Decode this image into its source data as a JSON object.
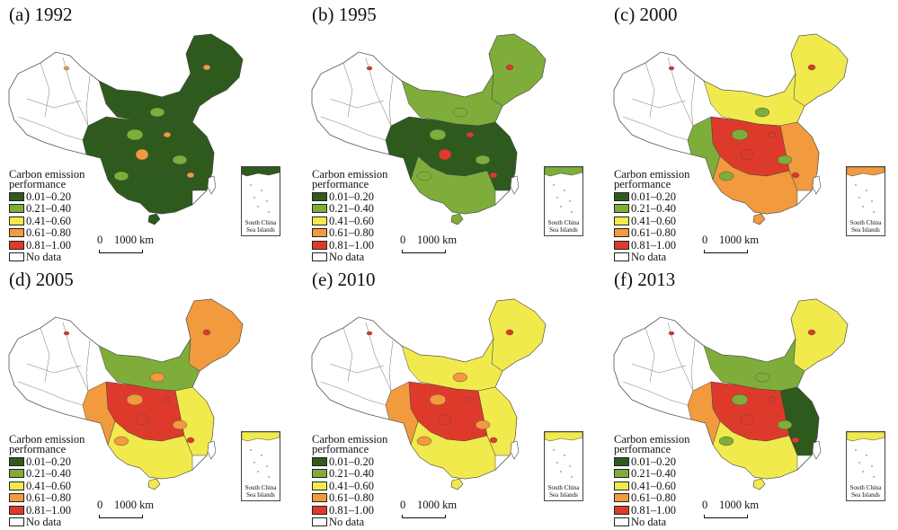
{
  "legend": {
    "title": "Carbon emission\nperformance",
    "classes": [
      {
        "label": "0.01–0.20",
        "color": "#2f5a1e"
      },
      {
        "label": "0.21–0.40",
        "color": "#7fad3a"
      },
      {
        "label": "0.41–0.60",
        "color": "#f1ea4d"
      },
      {
        "label": "0.61–0.80",
        "color": "#f19a3e"
      },
      {
        "label": "0.81–1.00",
        "color": "#de3a2b"
      },
      {
        "label": "No data",
        "color": "#ffffff"
      }
    ]
  },
  "scale": {
    "zero": "0",
    "distance": "1000 km"
  },
  "inset_label": "South China\nSea Islands",
  "panels": [
    {
      "title": "(a) 1992",
      "north": "#2f5a1e",
      "northeast": "#2f5a1e",
      "east": "#2f5a1e",
      "central": "#2f5a1e",
      "south": "#2f5a1e",
      "west": "#2f5a1e",
      "accent": "#7fad3a",
      "hot": "#f19a3e"
    },
    {
      "title": "(b) 1995",
      "north": "#7fad3a",
      "northeast": "#7fad3a",
      "east": "#2f5a1e",
      "central": "#2f5a1e",
      "south": "#7fad3a",
      "west": "#2f5a1e",
      "accent": "#7fad3a",
      "hot": "#de3a2b"
    },
    {
      "title": "(c) 2000",
      "north": "#f1ea4d",
      "northeast": "#f1ea4d",
      "east": "#f19a3e",
      "central": "#de3a2b",
      "south": "#f19a3e",
      "west": "#7fad3a",
      "accent": "#7fad3a",
      "hot": "#de3a2b"
    },
    {
      "title": "(d) 2005",
      "north": "#7fad3a",
      "northeast": "#f19a3e",
      "east": "#f1ea4d",
      "central": "#de3a2b",
      "south": "#f1ea4d",
      "west": "#f19a3e",
      "accent": "#f19a3e",
      "hot": "#de3a2b"
    },
    {
      "title": "(e) 2010",
      "north": "#f1ea4d",
      "northeast": "#f1ea4d",
      "east": "#f1ea4d",
      "central": "#de3a2b",
      "south": "#f1ea4d",
      "west": "#f19a3e",
      "accent": "#f19a3e",
      "hot": "#de3a2b"
    },
    {
      "title": "(f) 2013",
      "north": "#7fad3a",
      "northeast": "#f1ea4d",
      "east": "#2f5a1e",
      "central": "#de3a2b",
      "south": "#f1ea4d",
      "west": "#f19a3e",
      "accent": "#7fad3a",
      "hot": "#de3a2b"
    }
  ]
}
